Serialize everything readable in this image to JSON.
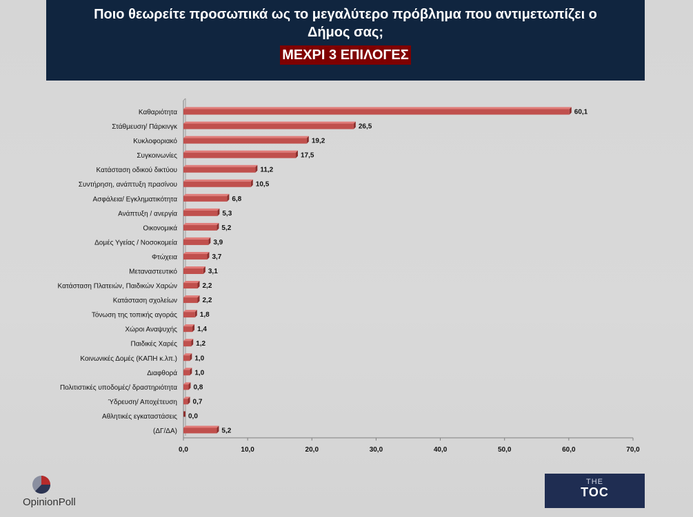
{
  "header": {
    "title": "Ποιο θεωρείτε προσωπικά ως το μεγαλύτερο πρόβλημα που αντιμετωπίζει ο Δήμος σας;",
    "subtitle": "ΜΕΧΡΙ 3 ΕΠΙΛΟΓΕΣ"
  },
  "chart_data": {
    "type": "bar",
    "orientation": "horizontal",
    "categories": [
      "Καθαριότητα",
      "Στάθμευση/ Πάρκινγκ",
      "Κυκλοφοριακό",
      "Συγκοινωνίες",
      "Κατάσταση οδικού δικτύου",
      "Συντήρηση, ανάπτυξη πρασίνου",
      "Ασφάλεια/ Εγκληματικότητα",
      "Ανάπτυξη / ανεργία",
      "Οικονομικά",
      "Δομές Υγείας / Νοσοκομεία",
      "Φτώχεια",
      "Μεταναστευτικό",
      "Κατάσταση Πλατειών, Παιδικών Χαρών",
      "Κατάσταση σχολείων",
      "Τόνωση της τοπικής αγοράς",
      "Χώροι Αναψυχής",
      "Παιδικές Χαρές",
      "Κοινωνικές Δομές (ΚΑΠΗ κ.λπ.)",
      "Διαφθορά",
      "Πολιτιστικές υποδομές/ δραστηριότητα",
      "Ύδρευση/ Αποχέτευση",
      "Αθλητικές εγκαταστάσεις",
      "(ΔΓ/ΔΑ)"
    ],
    "values": [
      60.1,
      26.5,
      19.2,
      17.5,
      11.2,
      10.5,
      6.8,
      5.3,
      5.2,
      3.9,
      3.7,
      3.1,
      2.2,
      2.2,
      1.8,
      1.4,
      1.2,
      1.0,
      1.0,
      0.8,
      0.7,
      0.0,
      5.2
    ],
    "value_labels": [
      "60,1",
      "26,5",
      "19,2",
      "17,5",
      "11,2",
      "10,5",
      "6,8",
      "5,3",
      "5,2",
      "3,9",
      "3,7",
      "3,1",
      "2,2",
      "2,2",
      "1,8",
      "1,4",
      "1,2",
      "1,0",
      "1,0",
      "0,8",
      "0,7",
      "0,0",
      "5,2"
    ],
    "xlim": [
      0,
      70
    ],
    "x_ticks": [
      0,
      10,
      20,
      30,
      40,
      50,
      60,
      70
    ],
    "x_tick_labels": [
      "0,0",
      "10,0",
      "20,0",
      "30,0",
      "40,0",
      "50,0",
      "60,0",
      "70,0"
    ],
    "grid": false,
    "bar_color": "#c0504d",
    "bar_dark_color": "#8c2f2d",
    "bar_light_color": "#e07b78"
  },
  "logos": {
    "left_text": "OpinionPoll",
    "right_top": "THE",
    "right_main": "TOC"
  }
}
